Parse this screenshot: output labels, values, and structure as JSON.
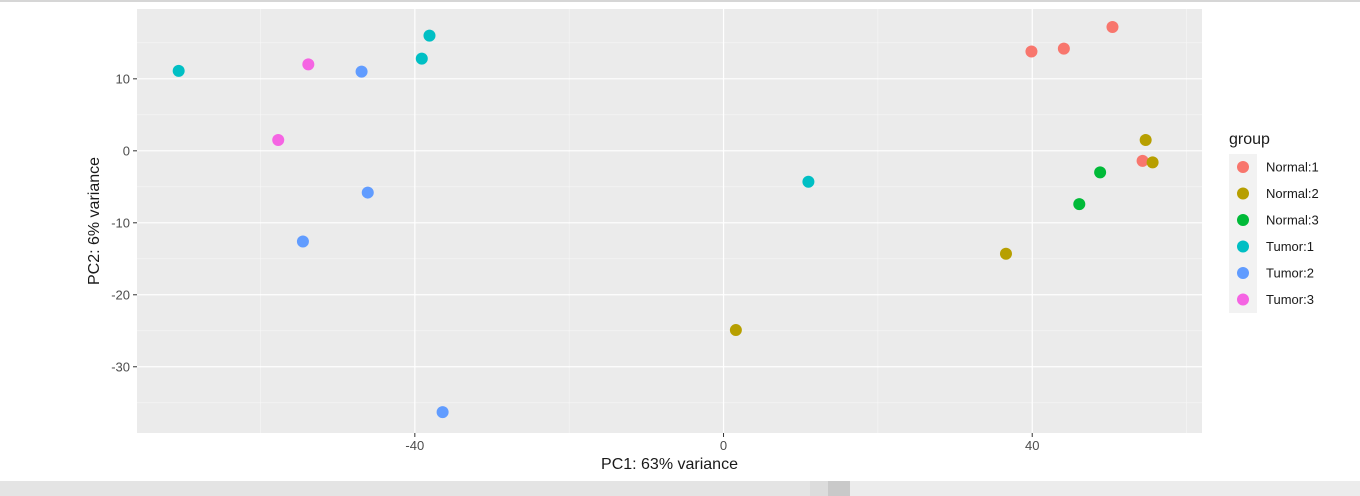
{
  "chart_data": {
    "type": "scatter",
    "title": "",
    "xlabel": "PC1: 63% variance",
    "ylabel": "PC2: 6% variance",
    "xlim": [
      -76,
      62
    ],
    "ylim": [
      -39.2,
      19.7
    ],
    "x_ticks": [
      -40,
      0,
      40
    ],
    "x_tick_labels": [
      "-40",
      "0",
      "40"
    ],
    "y_ticks": [
      10,
      0,
      -10,
      -20,
      -30
    ],
    "y_tick_labels": [
      "10",
      "0",
      "-10",
      "-20",
      "-30"
    ],
    "grid": true,
    "legend": {
      "title": "group",
      "position": "right"
    },
    "series": [
      {
        "name": "Normal:1",
        "color": "#F8766D",
        "points": [
          [
            39.9,
            13.8
          ],
          [
            44.1,
            14.2
          ],
          [
            50.4,
            17.2
          ],
          [
            54.3,
            -1.4
          ]
        ]
      },
      {
        "name": "Normal:2",
        "color": "#B79F00",
        "points": [
          [
            54.7,
            1.5
          ],
          [
            55.6,
            -1.6
          ],
          [
            36.6,
            -14.3
          ],
          [
            1.6,
            -24.9
          ]
        ]
      },
      {
        "name": "Normal:3",
        "color": "#00BA38",
        "points": [
          [
            48.8,
            -3.0
          ],
          [
            46.1,
            -7.4
          ]
        ]
      },
      {
        "name": "Tumor:1",
        "color": "#00BFC4",
        "points": [
          [
            -70.6,
            11.1
          ],
          [
            -38.1,
            16.0
          ],
          [
            -39.1,
            12.8
          ],
          [
            11.0,
            -4.3
          ]
        ]
      },
      {
        "name": "Tumor:2",
        "color": "#619CFF",
        "points": [
          [
            -46.9,
            11.0
          ],
          [
            -46.1,
            -5.8
          ],
          [
            -54.5,
            -12.6
          ],
          [
            -36.4,
            -36.3
          ]
        ]
      },
      {
        "name": "Tumor:3",
        "color": "#F564E3",
        "points": [
          [
            -53.8,
            12.0
          ],
          [
            -57.7,
            1.5
          ]
        ]
      }
    ]
  }
}
